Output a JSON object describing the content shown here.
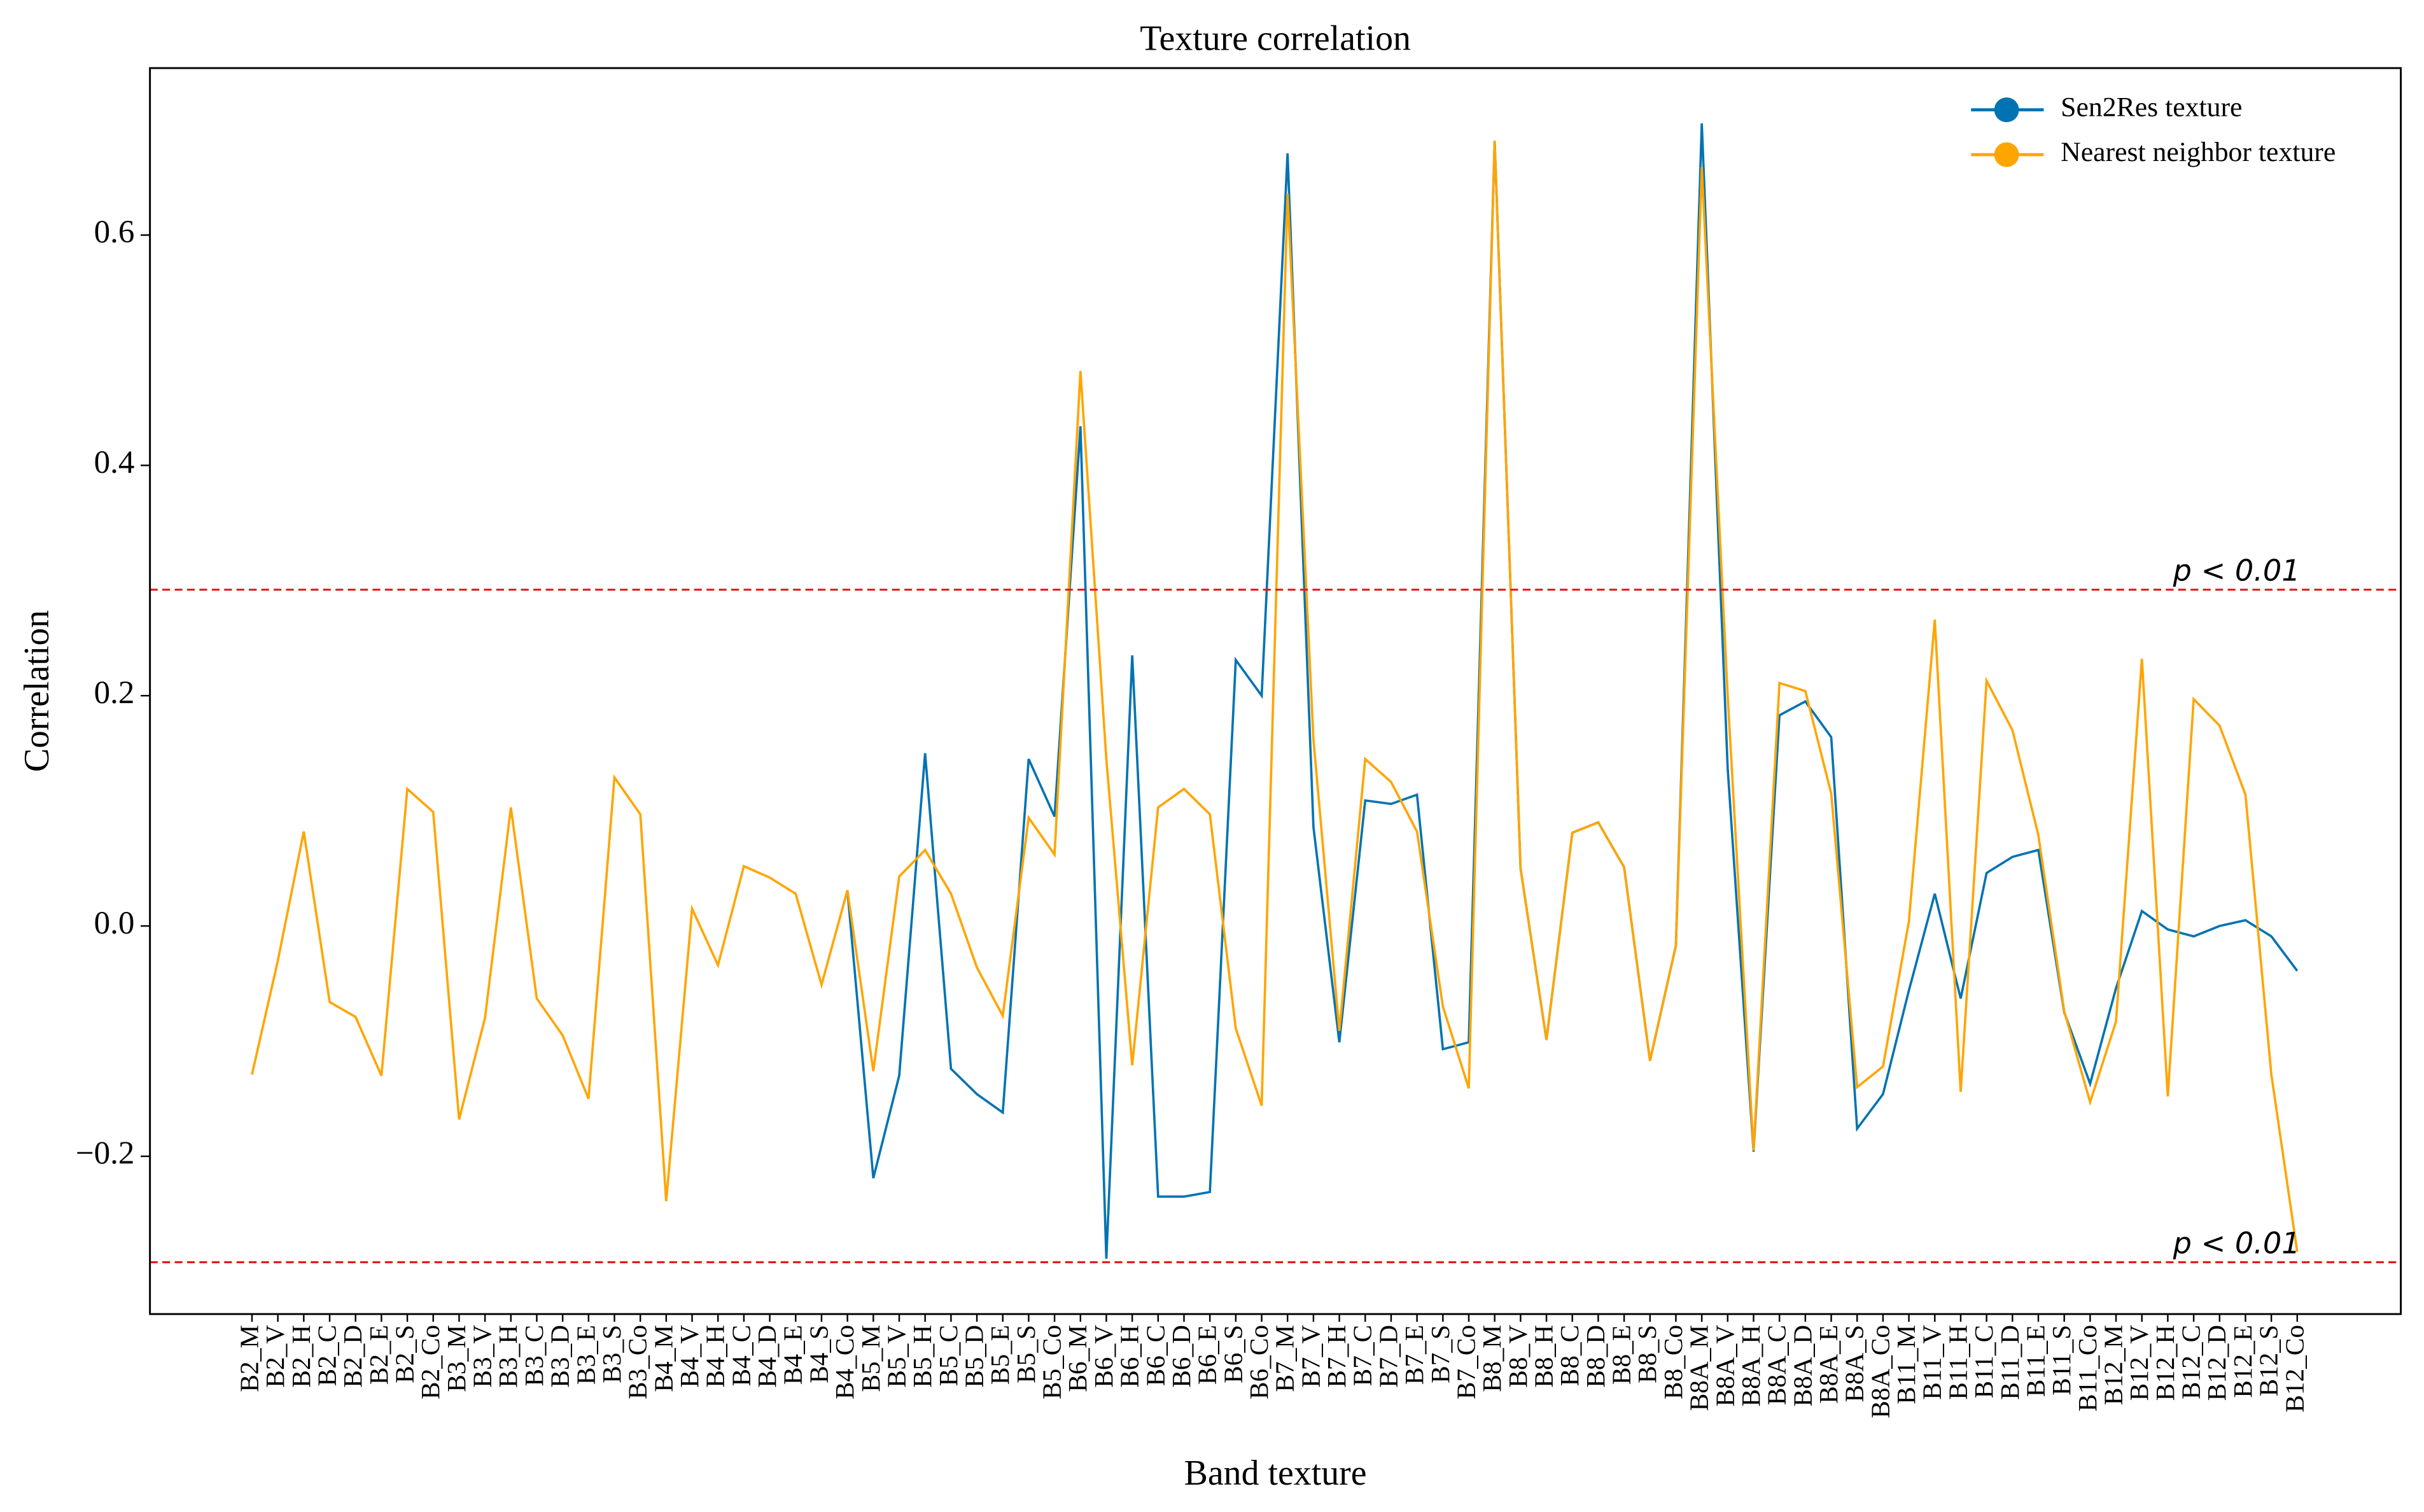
{
  "chart_data": {
    "type": "line",
    "title": "Texture correlation",
    "xlabel": "Band texture",
    "ylabel": "Correlation",
    "categories": [
      "B2_M",
      "B2_V",
      "B2_H",
      "B2_C",
      "B2_D",
      "B2_E",
      "B2_S",
      "B2_Co",
      "B3_M",
      "B3_V",
      "B3_H",
      "B3_C",
      "B3_D",
      "B3_E",
      "B3_S",
      "B3_Co",
      "B4_M",
      "B4_V",
      "B4_H",
      "B4_C",
      "B4_D",
      "B4_E",
      "B4_S",
      "B4_Co",
      "B5_M",
      "B5_V",
      "B5_H",
      "B5_C",
      "B5_D",
      "B5_E",
      "B5_S",
      "B5_Co",
      "B6_M",
      "B6_V",
      "B6_H",
      "B6_C",
      "B6_D",
      "B6_E",
      "B6_S",
      "B6_Co",
      "B7_M",
      "B7_V",
      "B7_H",
      "B7_C",
      "B7_D",
      "B7_E",
      "B7_S",
      "B7_Co",
      "B8_M",
      "B8_V",
      "B8_H",
      "B8_C",
      "B8_D",
      "B8_E",
      "B8_S",
      "B8_Co",
      "B8A_M",
      "B8A_V",
      "B8A_H",
      "B8A_C",
      "B8A_D",
      "B8A_E",
      "B8A_S",
      "B8A_Co",
      "B11_M",
      "B11_V",
      "B11_H",
      "B11_C",
      "B11_D",
      "B11_E",
      "B11_S",
      "B11_Co",
      "B12_M",
      "B12_V",
      "B12_H",
      "B12_C",
      "B12_D",
      "B12_E",
      "B12_S",
      "B12_Co"
    ],
    "series": [
      {
        "name": "Sen2Res texture",
        "color": "#0173b2",
        "values": [
          null,
          null,
          null,
          null,
          null,
          null,
          null,
          null,
          null,
          null,
          null,
          null,
          null,
          null,
          null,
          null,
          null,
          null,
          null,
          null,
          null,
          null,
          null,
          0.031,
          -0.219,
          -0.13,
          0.15,
          -0.124,
          -0.146,
          -0.162,
          0.145,
          0.095,
          0.434,
          -0.289,
          0.235,
          -0.235,
          -0.235,
          -0.231,
          0.231,
          0.2,
          0.671,
          0.086,
          -0.101,
          0.109,
          0.106,
          0.114,
          -0.107,
          -0.101,
          0.682,
          0.05,
          -0.099,
          0.081,
          0.09,
          0.051,
          -0.117,
          -0.017,
          0.697,
          0.137,
          -0.196,
          0.183,
          0.195,
          0.164,
          -0.176,
          -0.146,
          -0.056,
          0.028,
          -0.063,
          0.046,
          0.06,
          0.066,
          -0.075,
          -0.137,
          -0.054,
          0.013,
          -0.003,
          -0.009,
          0.0,
          0.005,
          -0.009,
          -0.039
        ]
      },
      {
        "name": "Nearest neighbor texture",
        "color": "#ffa500",
        "values": [
          -0.129,
          -0.03,
          0.082,
          -0.066,
          -0.079,
          -0.13,
          0.119,
          0.099,
          -0.168,
          -0.08,
          0.103,
          -0.063,
          -0.095,
          -0.15,
          0.129,
          0.097,
          -0.239,
          0.015,
          -0.034,
          0.052,
          0.042,
          0.028,
          -0.051,
          0.031,
          -0.126,
          0.043,
          0.066,
          0.028,
          -0.036,
          -0.078,
          0.094,
          0.062,
          0.482,
          0.145,
          -0.121,
          0.103,
          0.119,
          0.097,
          -0.089,
          -0.156,
          0.636,
          0.162,
          -0.091,
          0.145,
          0.125,
          0.082,
          -0.07,
          -0.141,
          0.682,
          0.05,
          -0.099,
          0.081,
          0.09,
          0.051,
          -0.117,
          -0.017,
          0.659,
          0.2,
          -0.195,
          0.211,
          0.204,
          0.115,
          -0.14,
          -0.122,
          0.004,
          0.266,
          -0.144,
          0.213,
          0.17,
          0.079,
          -0.074,
          -0.153,
          -0.083,
          0.232,
          -0.148,
          0.197,
          0.174,
          0.114,
          -0.129,
          -0.283
        ]
      }
    ],
    "ylim": [
      -0.337,
      0.745
    ],
    "yticks": [
      {
        "value": -0.2,
        "label": "−0.2"
      },
      {
        "value": 0,
        "label": "0.0"
      },
      0.2,
      0.4,
      0.6
    ],
    "hlines": [
      {
        "value": 0.292,
        "label": "p < 0.01",
        "color": "#e41a1c"
      },
      {
        "value": -0.292,
        "label": "p < 0.01",
        "color": "#e41a1c"
      }
    ],
    "legend": "upper right",
    "grid": false
  }
}
